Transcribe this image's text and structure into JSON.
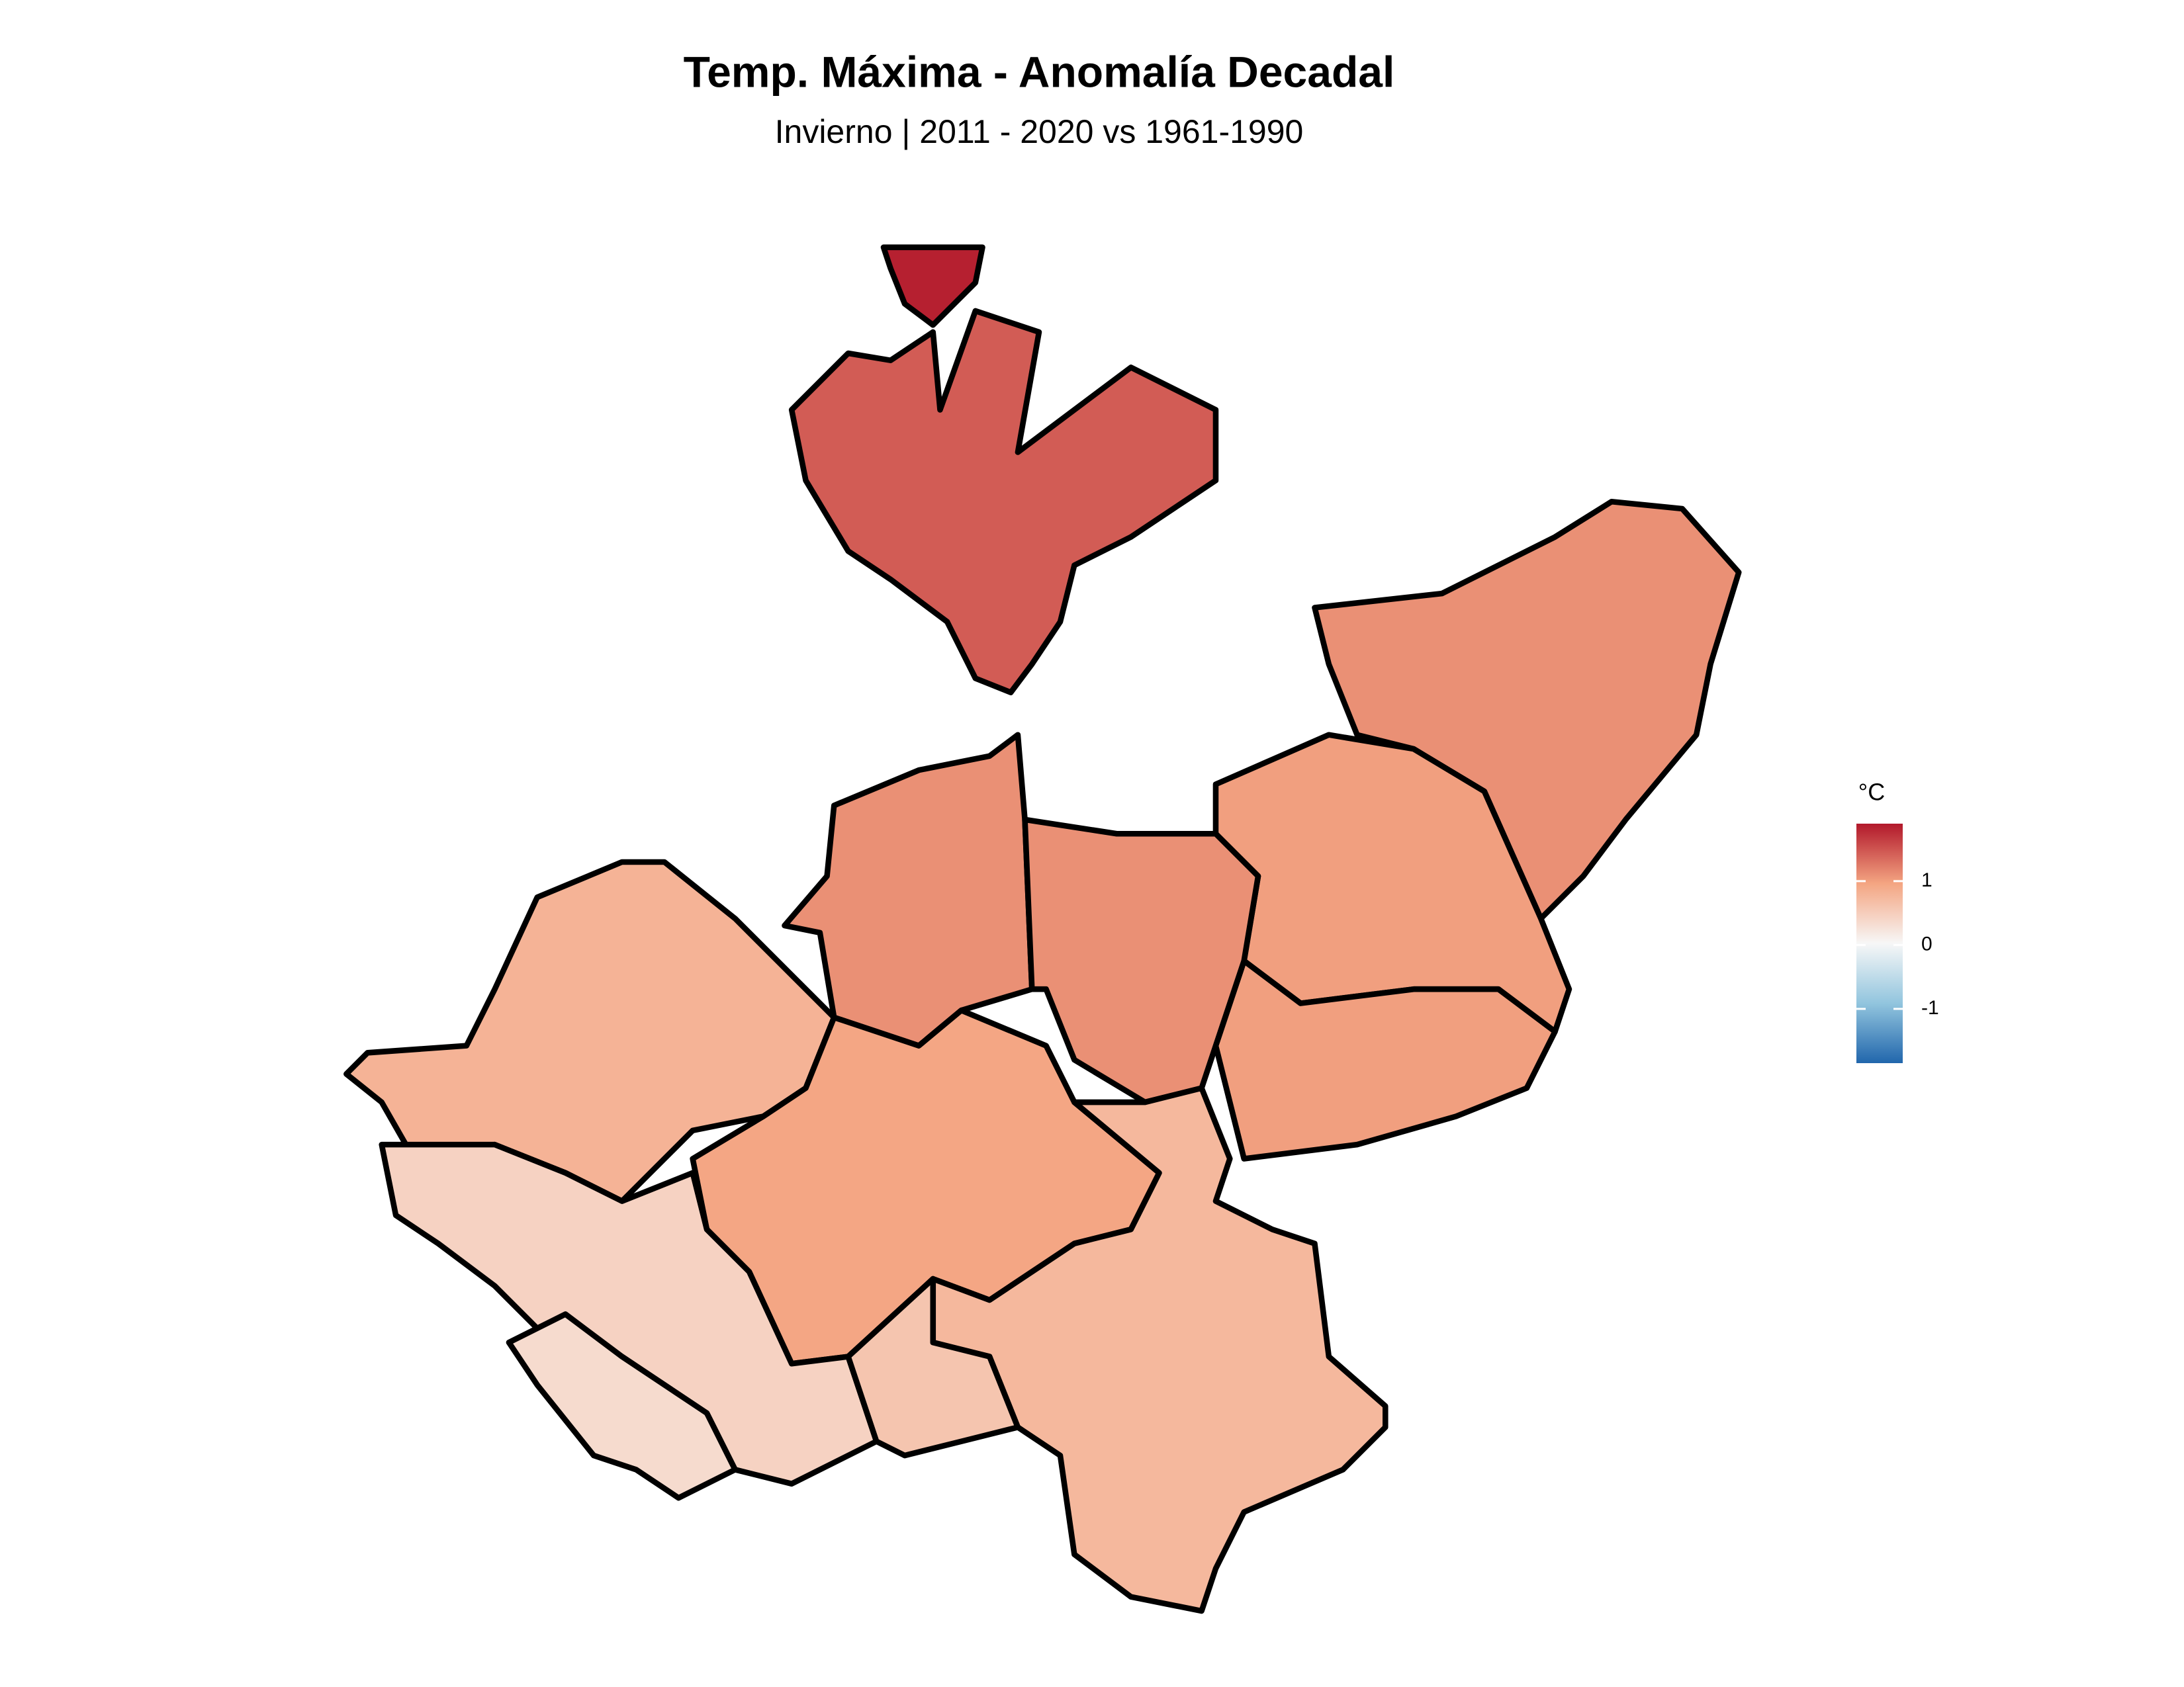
{
  "chart_data": {
    "type": "choropleth",
    "title": "Temp. Máxima - Anomalía Decadal",
    "subtitle": "Invierno | 2011 - 2020 vs 1961-1990",
    "legend_title": "°C",
    "values": [
      1.85,
      1.45,
      1.1,
      1.0,
      1.0,
      1.1,
      1.1,
      0.8,
      0.95,
      0.75,
      0.45,
      0.35,
      0.6
    ],
    "colors": [
      "#2166ac",
      "#92c5de",
      "#f7f7f7",
      "#f4a582",
      "#b2182b"
    ],
    "lim": [
      -1.85,
      1.9
    ],
    "ticks": [
      1,
      0,
      -1
    ]
  }
}
